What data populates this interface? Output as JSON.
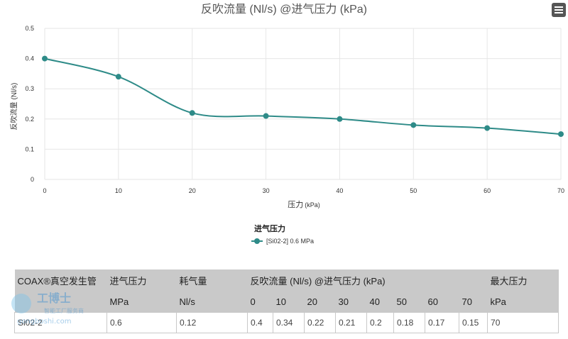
{
  "chart_data": {
    "type": "line",
    "title": "反吹流量 (Nl/s) @进气压力 (kPa)",
    "xlabel": "压力",
    "xlabel_unit": "(kPa)",
    "ylabel": "反吹流量 (Nl/s)",
    "x": [
      0,
      10,
      20,
      30,
      40,
      50,
      60,
      70
    ],
    "xlim": [
      0,
      70
    ],
    "ylim": [
      0,
      0.5
    ],
    "xticks": [
      "0",
      "10",
      "20",
      "30",
      "40",
      "50",
      "60",
      "70"
    ],
    "yticks": [
      "0",
      "0.1",
      "0.2",
      "0.3",
      "0.4",
      "0.5"
    ],
    "grid": true,
    "legend_title": "进气压力",
    "legend_position": "bottom-center",
    "series": [
      {
        "name": "[Si02-2] 0.6 MPa",
        "color": "#2e8b88",
        "values": [
          0.4,
          0.34,
          0.22,
          0.21,
          0.2,
          0.18,
          0.17,
          0.15
        ]
      }
    ]
  },
  "menu_icon": "hamburger-menu-icon",
  "table": {
    "header1": [
      "COAX®真空发生管",
      "进气压力",
      "耗气量",
      "反吹流量 (Nl/s) @进气压力 (kPa)",
      "最大压力"
    ],
    "header2": [
      "",
      "MPa",
      "Nl/s",
      "0",
      "10",
      "20",
      "30",
      "40",
      "50",
      "60",
      "70",
      "kPa"
    ],
    "row": [
      "Si02-2",
      "0.6",
      "0.12",
      "0.4",
      "0.34",
      "0.22",
      "0.21",
      "0.2",
      "0.18",
      "0.17",
      "0.15",
      "70"
    ]
  },
  "watermark": {
    "brand": "工博士",
    "sub": "智能工厂服务商",
    "url": "gongboshi.com"
  }
}
